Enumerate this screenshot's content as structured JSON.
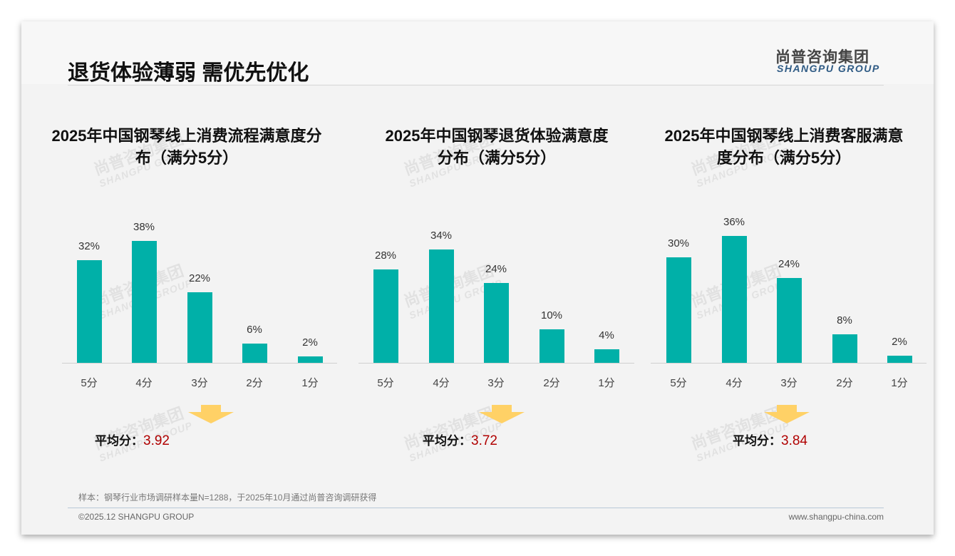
{
  "header": {
    "title": "退货体验薄弱 需优先优化",
    "logo_cn": "尚普咨询集团",
    "logo_en": "SHANGPU GROUP"
  },
  "colors": {
    "bar": "#00b0a8",
    "arrow": "#ffd166",
    "avg_value": "#b00000"
  },
  "chart_data": [
    {
      "type": "bar",
      "title_line1": "2025年中国钢琴线上消费流程满意度分",
      "title_line2": "布（满分5分）",
      "categories": [
        "5分",
        "4分",
        "3分",
        "2分",
        "1分"
      ],
      "values": [
        32,
        38,
        22,
        6,
        2
      ],
      "labels": [
        "32%",
        "38%",
        "22%",
        "6%",
        "2%"
      ],
      "unit": "%",
      "avg_label": "平均分：",
      "avg_value": "3.92"
    },
    {
      "type": "bar",
      "title_line1": "2025年中国钢琴退货体验满意度",
      "title_line2": "分布（满分5分）",
      "categories": [
        "5分",
        "4分",
        "3分",
        "2分",
        "1分"
      ],
      "values": [
        28,
        34,
        24,
        10,
        4
      ],
      "labels": [
        "28%",
        "34%",
        "24%",
        "10%",
        "4%"
      ],
      "unit": "%",
      "avg_label": "平均分：",
      "avg_value": "3.72"
    },
    {
      "type": "bar",
      "title_line1": "2025年中国钢琴线上消费客服满意",
      "title_line2": "度分布（满分5分）",
      "categories": [
        "5分",
        "4分",
        "3分",
        "2分",
        "1分"
      ],
      "values": [
        30,
        36,
        24,
        8,
        2
      ],
      "labels": [
        "30%",
        "36%",
        "24%",
        "8%",
        "2%"
      ],
      "unit": "%",
      "avg_label": "平均分：",
      "avg_value": "3.84"
    }
  ],
  "footer": {
    "note": "样本：钢琴行业市场调研样本量N=1288，于2025年10月通过尚普咨询调研获得",
    "copyright": "©2025.12 SHANGPU GROUP",
    "website": "www.shangpu-china.com"
  }
}
